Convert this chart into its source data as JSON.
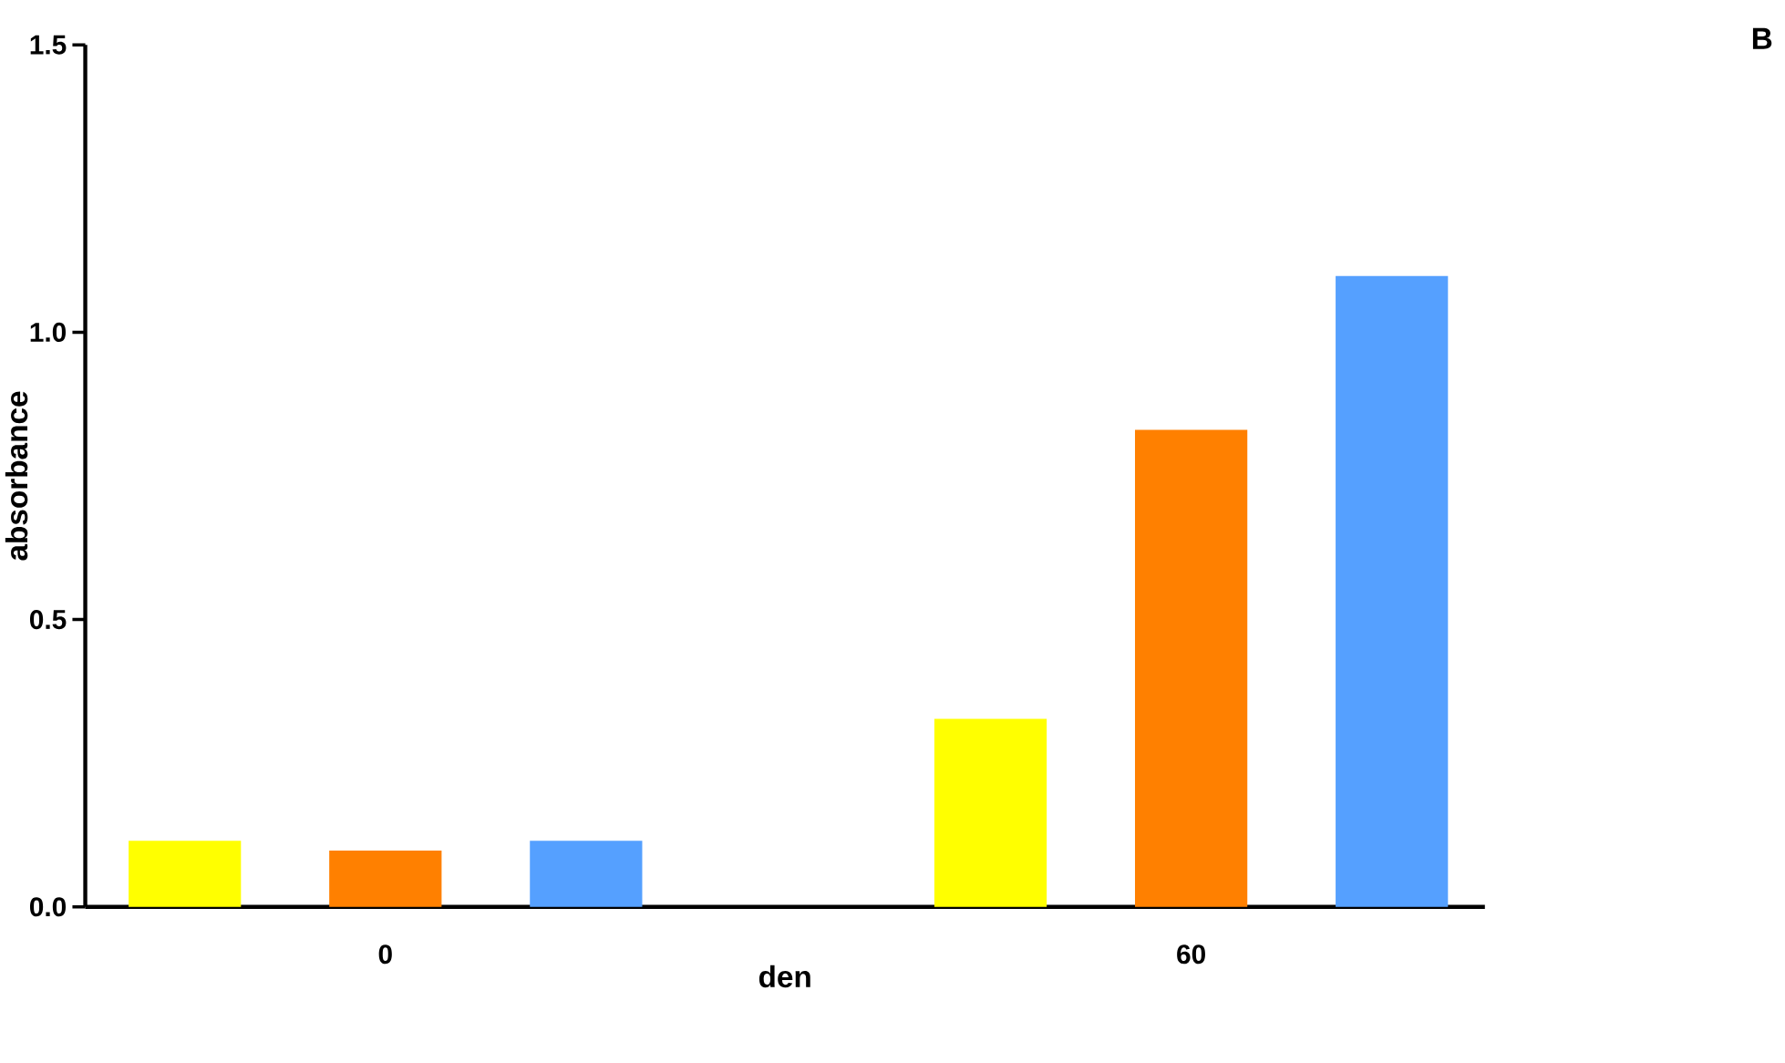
{
  "chart_data": {
    "type": "bar",
    "xlabel": "den",
    "ylabel": "absorbance",
    "annotations": [
      "B"
    ],
    "categories": [
      "0",
      "60"
    ],
    "series": [
      {
        "color": "#ffff00",
        "values": [
          0.115,
          0.327
        ]
      },
      {
        "color": "#ff8000",
        "values": [
          0.098,
          0.83
        ]
      },
      {
        "color": "#55a0ff",
        "values": [
          0.115,
          1.098
        ]
      }
    ],
    "ylim": [
      0,
      1.5
    ],
    "yticks": [
      {
        "value": 0,
        "label": "0.0"
      },
      0.5,
      {
        "value": 1.0,
        "label": "1.0"
      },
      1.5
    ]
  }
}
